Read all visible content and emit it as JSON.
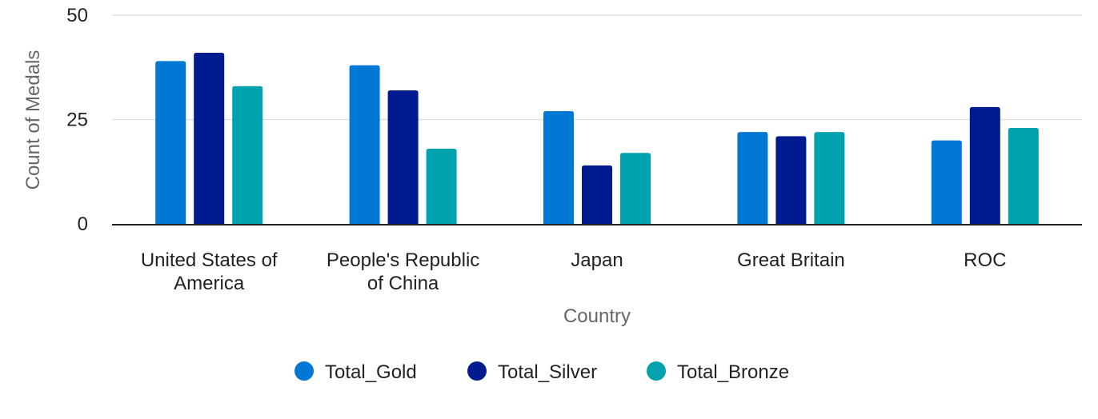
{
  "chart_data": {
    "type": "bar",
    "title": "",
    "xlabel": "Country",
    "ylabel": "Count of Medals",
    "ylim": [
      0,
      50
    ],
    "yticks": [
      0,
      25,
      50
    ],
    "grid": true,
    "legend_position": "bottom",
    "categories": [
      [
        "United States of",
        "America"
      ],
      [
        "People's Republic",
        "of China"
      ],
      [
        "Japan"
      ],
      [
        "Great Britain"
      ],
      [
        "ROC"
      ]
    ],
    "series": [
      {
        "name": "Total_Gold",
        "color": "#0078d4",
        "values": [
          39,
          38,
          27,
          22,
          20
        ]
      },
      {
        "name": "Total_Silver",
        "color": "#001a8f",
        "values": [
          41,
          32,
          14,
          21,
          28
        ]
      },
      {
        "name": "Total_Bronze",
        "color": "#00a2ad",
        "values": [
          33,
          18,
          17,
          22,
          23
        ]
      }
    ]
  }
}
